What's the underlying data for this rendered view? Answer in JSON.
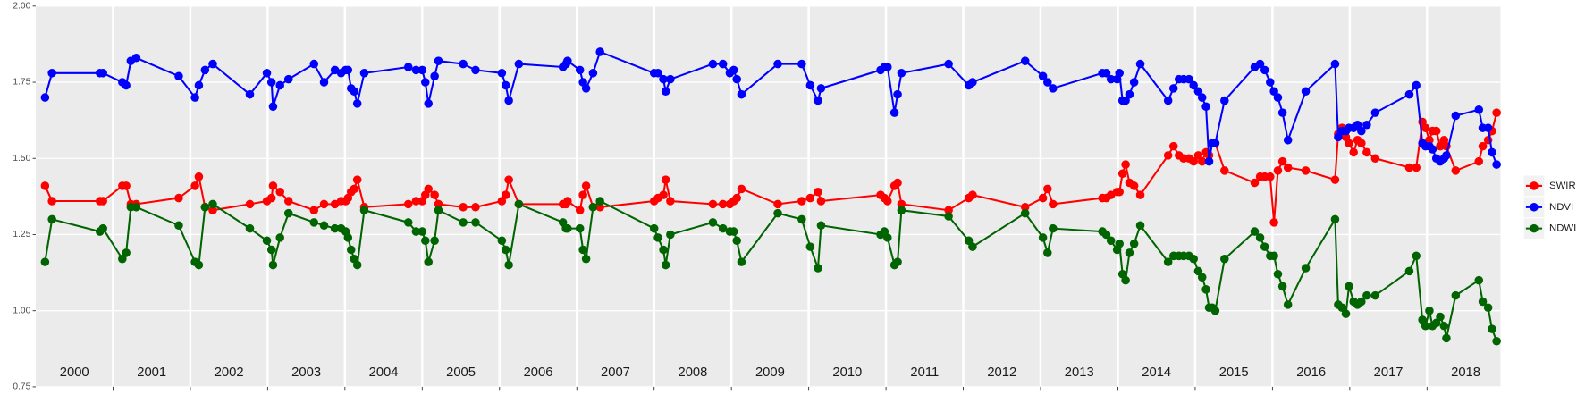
{
  "chart_data": {
    "type": "line",
    "x": [
      2000.12,
      2000.21,
      2000.83,
      2000.87,
      2001.12,
      2001.17,
      2001.23,
      2001.3,
      2001.85,
      2002.06,
      2002.11,
      2002.19,
      2002.29,
      2002.77,
      2002.99,
      2003.05,
      2003.07,
      2003.16,
      2003.27,
      2003.6,
      2003.73,
      2003.87,
      2003.95,
      2004.01,
      2004.04,
      2004.08,
      2004.12,
      2004.16,
      2004.25,
      2004.82,
      2004.92,
      2005.0,
      2005.04,
      2005.08,
      2005.16,
      2005.21,
      2005.53,
      2005.69,
      2006.03,
      2006.08,
      2006.12,
      2006.25,
      2006.82,
      2006.86,
      2006.88,
      2007.04,
      2007.08,
      2007.12,
      2007.21,
      2007.3,
      2008.0,
      2008.05,
      2008.12,
      2008.15,
      2008.21,
      2008.76,
      2008.89,
      2008.98,
      2009.03,
      2009.07,
      2009.13,
      2009.6,
      2009.91,
      2010.02,
      2010.12,
      2010.16,
      2010.93,
      2010.98,
      2011.02,
      2011.11,
      2011.15,
      2011.2,
      2011.81,
      2012.07,
      2012.12,
      2012.8,
      2013.03,
      2013.09,
      2013.16,
      2013.8,
      2013.85,
      2013.91,
      2013.99,
      2014.02,
      2014.06,
      2014.1,
      2014.15,
      2014.21,
      2014.29,
      2014.65,
      2014.72,
      2014.79,
      2014.85,
      2014.92,
      2014.98,
      2015.04,
      2015.09,
      2015.14,
      2015.18,
      2015.22,
      2015.26,
      2015.38,
      2015.77,
      2015.84,
      2015.9,
      2015.97,
      2016.02,
      2016.07,
      2016.13,
      2016.2,
      2016.43,
      2016.81,
      2016.85,
      2016.9,
      2016.95,
      2016.99,
      2017.05,
      2017.1,
      2017.15,
      2017.22,
      2017.33,
      2017.77,
      2017.86,
      2017.94,
      2017.98,
      2018.03,
      2018.07,
      2018.12,
      2018.17,
      2018.22,
      2018.25,
      2018.37,
      2018.67,
      2018.72,
      2018.79,
      2018.84,
      2018.9
    ],
    "series": [
      {
        "name": "SWIR",
        "color": "#ff0000",
        "values": [
          1.41,
          1.36,
          1.36,
          1.36,
          1.41,
          1.41,
          1.35,
          1.35,
          1.37,
          1.41,
          1.44,
          1.34,
          1.33,
          1.35,
          1.36,
          1.37,
          1.41,
          1.39,
          1.36,
          1.33,
          1.35,
          1.35,
          1.36,
          1.36,
          1.37,
          1.39,
          1.4,
          1.43,
          1.34,
          1.35,
          1.36,
          1.36,
          1.38,
          1.4,
          1.38,
          1.35,
          1.34,
          1.34,
          1.36,
          1.38,
          1.43,
          1.35,
          1.35,
          1.35,
          1.36,
          1.33,
          1.38,
          1.41,
          1.34,
          1.34,
          1.36,
          1.37,
          1.38,
          1.43,
          1.36,
          1.35,
          1.35,
          1.35,
          1.36,
          1.37,
          1.4,
          1.35,
          1.36,
          1.37,
          1.39,
          1.36,
          1.38,
          1.37,
          1.36,
          1.41,
          1.42,
          1.35,
          1.33,
          1.37,
          1.38,
          1.34,
          1.37,
          1.4,
          1.35,
          1.37,
          1.37,
          1.38,
          1.39,
          1.39,
          1.45,
          1.48,
          1.42,
          1.41,
          1.38,
          1.51,
          1.54,
          1.51,
          1.5,
          1.5,
          1.49,
          1.51,
          1.49,
          1.52,
          1.51,
          1.55,
          1.55,
          1.46,
          1.42,
          1.44,
          1.44,
          1.44,
          1.29,
          1.46,
          1.49,
          1.47,
          1.46,
          1.43,
          1.58,
          1.6,
          1.57,
          1.55,
          1.52,
          1.56,
          1.55,
          1.52,
          1.5,
          1.47,
          1.47,
          1.62,
          1.6,
          1.56,
          1.59,
          1.59,
          1.54,
          1.56,
          1.54,
          1.46,
          1.49,
          1.54,
          1.56,
          1.59,
          1.65
        ]
      },
      {
        "name": "NDVI",
        "color": "#0000ff",
        "values": [
          1.7,
          1.78,
          1.78,
          1.78,
          1.75,
          1.74,
          1.82,
          1.83,
          1.77,
          1.7,
          1.74,
          1.79,
          1.81,
          1.71,
          1.78,
          1.75,
          1.67,
          1.74,
          1.76,
          1.81,
          1.75,
          1.79,
          1.78,
          1.79,
          1.79,
          1.73,
          1.72,
          1.68,
          1.78,
          1.8,
          1.79,
          1.79,
          1.75,
          1.68,
          1.77,
          1.82,
          1.81,
          1.79,
          1.78,
          1.74,
          1.69,
          1.81,
          1.8,
          1.81,
          1.82,
          1.79,
          1.75,
          1.73,
          1.78,
          1.85,
          1.78,
          1.78,
          1.76,
          1.72,
          1.76,
          1.81,
          1.81,
          1.78,
          1.79,
          1.76,
          1.71,
          1.81,
          1.81,
          1.74,
          1.69,
          1.73,
          1.79,
          1.8,
          1.8,
          1.65,
          1.71,
          1.78,
          1.81,
          1.74,
          1.75,
          1.82,
          1.77,
          1.75,
          1.73,
          1.78,
          1.78,
          1.76,
          1.76,
          1.78,
          1.69,
          1.69,
          1.71,
          1.75,
          1.81,
          1.69,
          1.73,
          1.76,
          1.76,
          1.76,
          1.74,
          1.72,
          1.7,
          1.67,
          1.49,
          1.55,
          1.55,
          1.69,
          1.8,
          1.81,
          1.79,
          1.75,
          1.72,
          1.7,
          1.65,
          1.56,
          1.72,
          1.81,
          1.57,
          1.59,
          1.59,
          1.6,
          1.6,
          1.61,
          1.59,
          1.61,
          1.65,
          1.71,
          1.74,
          1.55,
          1.54,
          1.54,
          1.53,
          1.5,
          1.49,
          1.5,
          1.51,
          1.64,
          1.66,
          1.6,
          1.6,
          1.52,
          1.48
        ]
      },
      {
        "name": "NDWI",
        "color": "#006400",
        "values": [
          1.16,
          1.3,
          1.26,
          1.27,
          1.17,
          1.19,
          1.34,
          1.34,
          1.28,
          1.16,
          1.15,
          1.34,
          1.35,
          1.27,
          1.23,
          1.2,
          1.15,
          1.24,
          1.32,
          1.29,
          1.28,
          1.27,
          1.27,
          1.26,
          1.24,
          1.2,
          1.17,
          1.15,
          1.33,
          1.29,
          1.26,
          1.26,
          1.23,
          1.16,
          1.23,
          1.33,
          1.29,
          1.29,
          1.23,
          1.2,
          1.15,
          1.35,
          1.29,
          1.27,
          1.27,
          1.27,
          1.2,
          1.17,
          1.34,
          1.36,
          1.27,
          1.24,
          1.2,
          1.15,
          1.25,
          1.29,
          1.27,
          1.26,
          1.26,
          1.23,
          1.16,
          1.32,
          1.3,
          1.21,
          1.14,
          1.28,
          1.25,
          1.26,
          1.24,
          1.15,
          1.16,
          1.33,
          1.31,
          1.23,
          1.21,
          1.32,
          1.24,
          1.19,
          1.27,
          1.26,
          1.25,
          1.23,
          1.2,
          1.22,
          1.12,
          1.1,
          1.19,
          1.22,
          1.28,
          1.16,
          1.18,
          1.18,
          1.18,
          1.18,
          1.17,
          1.13,
          1.11,
          1.07,
          1.01,
          1.01,
          1.0,
          1.17,
          1.26,
          1.24,
          1.21,
          1.18,
          1.18,
          1.12,
          1.08,
          1.02,
          1.14,
          1.3,
          1.02,
          1.01,
          0.99,
          1.08,
          1.03,
          1.02,
          1.03,
          1.05,
          1.05,
          1.13,
          1.18,
          0.97,
          0.95,
          1.0,
          0.95,
          0.96,
          0.98,
          0.95,
          0.91,
          1.05,
          1.1,
          1.03,
          1.01,
          0.94,
          0.9
        ]
      }
    ],
    "xlim": [
      2000,
      2018.95
    ],
    "xticks": [
      2001,
      2002,
      2003,
      2004,
      2005,
      2006,
      2007,
      2008,
      2009,
      2010,
      2011,
      2012,
      2013,
      2014,
      2015,
      2016,
      2017,
      2018
    ],
    "ylim": [
      0.75,
      2.0
    ],
    "yticks": [
      {
        "value": 0.75,
        "label": "0.75"
      },
      {
        "value": 1.0,
        "label": "1.00"
      },
      {
        "value": 1.25,
        "label": "1.25"
      },
      {
        "value": 1.5,
        "label": "1.50"
      },
      {
        "value": 1.75,
        "label": "1.75"
      },
      {
        "value": 2.0,
        "label": "2.00"
      }
    ],
    "year_labels": [
      2000,
      2001,
      2002,
      2003,
      2004,
      2005,
      2006,
      2007,
      2008,
      2009,
      2010,
      2011,
      2012,
      2013,
      2014,
      2015,
      2016,
      2017,
      2018
    ],
    "grid": true,
    "legend": "right"
  }
}
